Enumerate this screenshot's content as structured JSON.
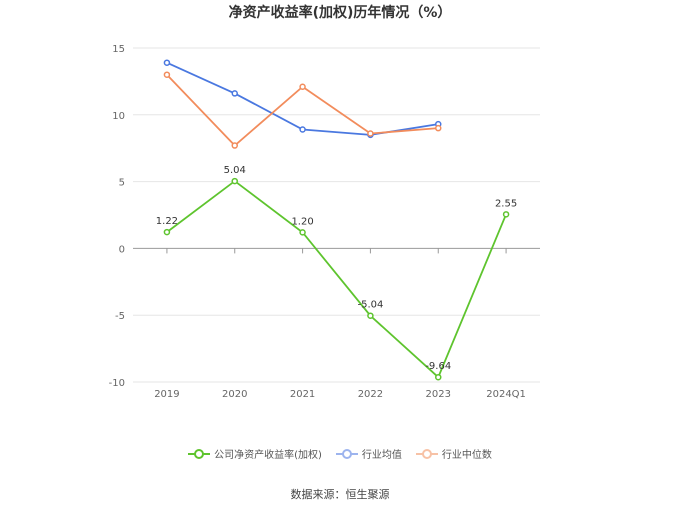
{
  "chart_data": {
    "type": "line",
    "title": "净资产收益率(加权)历年情况（%）",
    "categories": [
      "2019",
      "2020",
      "2021",
      "2022",
      "2023",
      "2024Q1"
    ],
    "ylim": [
      -10,
      15
    ],
    "yticks": [
      15,
      10,
      5,
      0,
      -5,
      -10
    ],
    "grid": true,
    "legend_position": "bottom",
    "series": [
      {
        "name": "公司净资产收益率(加权)",
        "color": "#5ec42e",
        "values": [
          1.22,
          5.04,
          1.2,
          -5.04,
          -9.64,
          2.55
        ],
        "labels": [
          "1.22",
          "5.04",
          "1.20",
          "-5.04",
          "-9.64",
          "2.55"
        ]
      },
      {
        "name": "行业均值",
        "color": "#4a78e0",
        "values": [
          13.9,
          11.6,
          8.9,
          8.5,
          9.3,
          null
        ]
      },
      {
        "name": "行业中位数",
        "color": "#f28c5c",
        "values": [
          13.0,
          7.7,
          12.1,
          8.6,
          9.0,
          null
        ]
      }
    ]
  },
  "source": "数据来源：恒生聚源"
}
